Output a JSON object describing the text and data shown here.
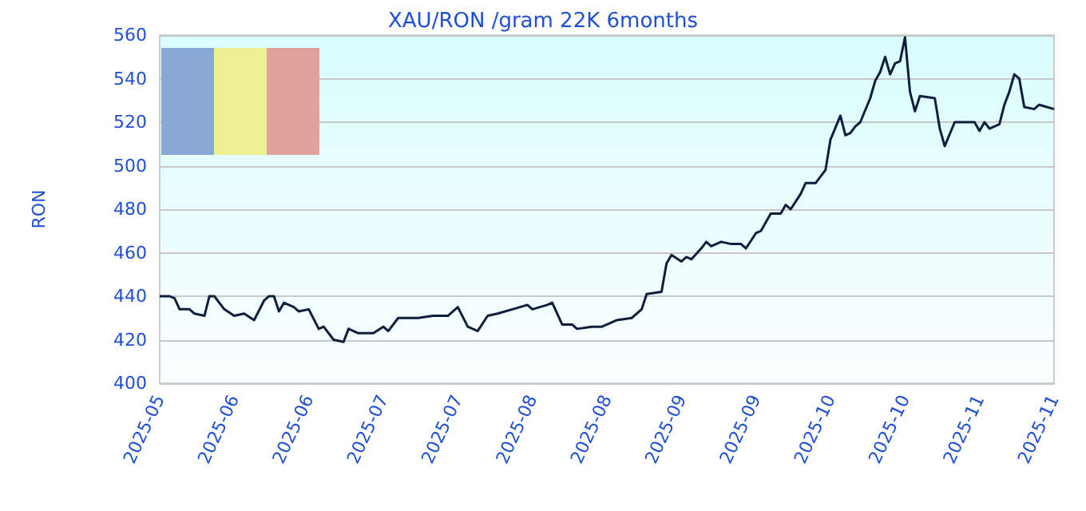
{
  "chart_data": {
    "type": "line",
    "title": "XAU/RON /gram 22K 6months",
    "ylabel": "RON",
    "x": [
      "2025-05-20",
      "2025-05-22",
      "2025-05-23",
      "2025-05-24",
      "2025-05-26",
      "2025-05-27",
      "2025-05-29",
      "2025-05-30",
      "2025-05-31",
      "2025-06-02",
      "2025-06-04",
      "2025-06-06",
      "2025-06-08",
      "2025-06-10",
      "2025-06-11",
      "2025-06-12",
      "2025-06-13",
      "2025-06-14",
      "2025-06-16",
      "2025-06-17",
      "2025-06-19",
      "2025-06-21",
      "2025-06-22",
      "2025-06-24",
      "2025-06-26",
      "2025-06-27",
      "2025-06-29",
      "2025-07-02",
      "2025-07-04",
      "2025-07-05",
      "2025-07-07",
      "2025-07-11",
      "2025-07-14",
      "2025-07-17",
      "2025-07-19",
      "2025-07-21",
      "2025-07-23",
      "2025-07-25",
      "2025-07-27",
      "2025-07-30",
      "2025-08-02",
      "2025-08-03",
      "2025-08-06",
      "2025-08-07",
      "2025-08-09",
      "2025-08-11",
      "2025-08-12",
      "2025-08-15",
      "2025-08-17",
      "2025-08-20",
      "2025-08-23",
      "2025-08-25",
      "2025-08-26",
      "2025-08-29",
      "2025-08-30",
      "2025-08-31",
      "2025-09-02",
      "2025-09-03",
      "2025-09-04",
      "2025-09-06",
      "2025-09-07",
      "2025-09-08",
      "2025-09-10",
      "2025-09-12",
      "2025-09-14",
      "2025-09-15",
      "2025-09-17",
      "2025-09-18",
      "2025-09-19",
      "2025-09-20",
      "2025-09-22",
      "2025-09-23",
      "2025-09-24",
      "2025-09-26",
      "2025-09-27",
      "2025-09-29",
      "2025-10-01",
      "2025-10-02",
      "2025-10-04",
      "2025-10-05",
      "2025-10-06",
      "2025-10-07",
      "2025-10-08",
      "2025-10-10",
      "2025-10-11",
      "2025-10-12",
      "2025-10-13",
      "2025-10-14",
      "2025-10-15",
      "2025-10-16",
      "2025-10-17",
      "2025-10-18",
      "2025-10-19",
      "2025-10-20",
      "2025-10-23",
      "2025-10-24",
      "2025-10-25",
      "2025-10-27",
      "2025-10-28",
      "2025-10-31",
      "2025-11-01",
      "2025-11-02",
      "2025-11-03",
      "2025-11-05",
      "2025-11-06",
      "2025-11-07",
      "2025-11-08",
      "2025-11-09",
      "2025-11-10",
      "2025-11-12",
      "2025-11-13",
      "2025-11-16"
    ],
    "series": [
      {
        "color": "#0d1f3c",
        "values": [
          440,
          440,
          439,
          434,
          434,
          432,
          431,
          440,
          440,
          434,
          431,
          432,
          429,
          438,
          440,
          440,
          433,
          437,
          435,
          433,
          434,
          425,
          426,
          420,
          419,
          425,
          423,
          423,
          426,
          424,
          430,
          430,
          431,
          431,
          435,
          426,
          424,
          431,
          432,
          434,
          436,
          434,
          436,
          437,
          427,
          427,
          425,
          426,
          426,
          429,
          430,
          434,
          441,
          442,
          455,
          459,
          456,
          458,
          457,
          462,
          465,
          463,
          465,
          464,
          464,
          462,
          469,
          470,
          474,
          478,
          478,
          482,
          480,
          487,
          492,
          492,
          498,
          512,
          523,
          514,
          515,
          518,
          520,
          531,
          539,
          543,
          550,
          542,
          547,
          548,
          559,
          534,
          525,
          532,
          531,
          517,
          509,
          520,
          520,
          520,
          516,
          520,
          517,
          519,
          528,
          534,
          542,
          540,
          527,
          526,
          528,
          526
        ]
      }
    ],
    "xlim": [
      "2025-05-20",
      "2025-11-16"
    ],
    "xticks": [
      {
        "value": "2025-05-20",
        "label": "2025-05"
      },
      {
        "value": "2025-06-04",
        "label": "2025-06"
      },
      {
        "value": "2025-06-19",
        "label": "2025-06"
      },
      {
        "value": "2025-07-04",
        "label": "2025-07"
      },
      {
        "value": "2025-07-19",
        "label": "2025-07"
      },
      {
        "value": "2025-08-03",
        "label": "2025-08"
      },
      {
        "value": "2025-08-18",
        "label": "2025-08"
      },
      {
        "value": "2025-09-02",
        "label": "2025-09"
      },
      {
        "value": "2025-09-17",
        "label": "2025-09"
      },
      {
        "value": "2025-10-02",
        "label": "2025-10"
      },
      {
        "value": "2025-10-17",
        "label": "2025-10"
      },
      {
        "value": "2025-11-01",
        "label": "2025-11"
      },
      {
        "value": "2025-11-16",
        "label": "2025-11"
      }
    ],
    "ylim": [
      400,
      560
    ],
    "yticks": [
      400,
      420,
      440,
      460,
      480,
      500,
      520,
      540,
      560
    ],
    "grid": "y",
    "marker": "none",
    "line_style": "solid"
  }
}
